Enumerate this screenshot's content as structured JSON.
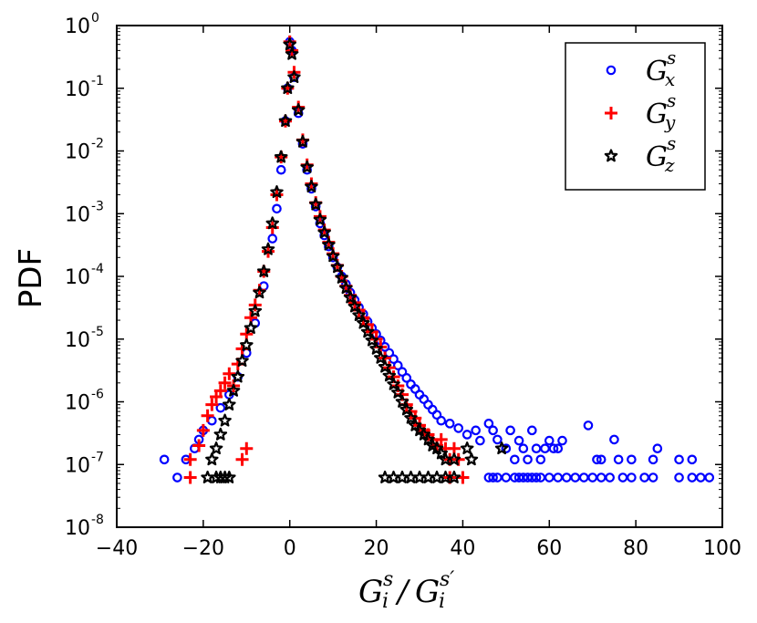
{
  "chart_data": {
    "type": "scatter",
    "title": "",
    "xlabel": {
      "base": "G",
      "sup": "s",
      "sub": "i",
      "slash": "/",
      "base2": "G",
      "sup2": "s′",
      "sub2": "i"
    },
    "ylabel": "PDF",
    "xscale": "linear",
    "yscale": "log",
    "xlim": [
      -40,
      100
    ],
    "ylim": [
      1e-08,
      1
    ],
    "x_ticks": [
      {
        "value": -40,
        "label": "−40"
      },
      {
        "value": -20,
        "label": "−20"
      },
      {
        "value": 0,
        "label": "0"
      },
      {
        "value": 20,
        "label": "20"
      },
      {
        "value": 40,
        "label": "40"
      },
      {
        "value": 60,
        "label": "60"
      },
      {
        "value": 80,
        "label": "80"
      },
      {
        "value": 100,
        "label": "100"
      }
    ],
    "y_ticks": [
      {
        "value": 1,
        "base": "10",
        "exp": "0"
      },
      {
        "value": 0.1,
        "base": "10",
        "exp": "-1"
      },
      {
        "value": 0.01,
        "base": "10",
        "exp": "-2"
      },
      {
        "value": 0.001,
        "base": "10",
        "exp": "-3"
      },
      {
        "value": 0.0001,
        "base": "10",
        "exp": "-4"
      },
      {
        "value": 1e-05,
        "base": "10",
        "exp": "-5"
      },
      {
        "value": 1e-06,
        "base": "10",
        "exp": "-6"
      },
      {
        "value": 1e-07,
        "base": "10",
        "exp": "-7"
      },
      {
        "value": 1e-08,
        "base": "10",
        "exp": "-8"
      }
    ],
    "grid": false,
    "legend_position": "top-right",
    "series": [
      {
        "name": "G_x^s",
        "legend": {
          "base": "G",
          "sup": "s",
          "sub": "x"
        },
        "marker": "circle",
        "color": "#0000ff",
        "points": [
          [
            -29,
            1.2e-07
          ],
          [
            -26,
            6.2e-08
          ],
          [
            -24,
            1.2e-07
          ],
          [
            -22,
            1.8e-07
          ],
          [
            -21,
            2.5e-07
          ],
          [
            -20,
            3.5e-07
          ],
          [
            -18,
            5e-07
          ],
          [
            -16,
            8e-07
          ],
          [
            -14,
            1.3e-06
          ],
          [
            -12,
            2.5e-06
          ],
          [
            -10,
            6e-06
          ],
          [
            -8,
            1.8e-05
          ],
          [
            -6,
            7e-05
          ],
          [
            -4,
            0.0004
          ],
          [
            -3,
            0.0012
          ],
          [
            -2,
            0.005
          ],
          [
            -1,
            0.03
          ],
          [
            -0.5,
            0.1
          ],
          [
            0,
            0.55
          ],
          [
            0.5,
            0.4
          ],
          [
            1,
            0.15
          ],
          [
            2,
            0.04
          ],
          [
            3,
            0.013
          ],
          [
            4,
            0.005
          ],
          [
            5,
            0.0025
          ],
          [
            6,
            0.0013
          ],
          [
            7,
            0.0007
          ],
          [
            8,
            0.00045
          ],
          [
            9,
            0.0003
          ],
          [
            10,
            0.0002
          ],
          [
            11,
            0.00014
          ],
          [
            12,
            0.0001
          ],
          [
            13,
            7.5e-05
          ],
          [
            14,
            5.5e-05
          ],
          [
            15,
            4.2e-05
          ],
          [
            16,
            3.2e-05
          ],
          [
            17,
            2.5e-05
          ],
          [
            18,
            1.9e-05
          ],
          [
            19,
            1.5e-05
          ],
          [
            20,
            1.2e-05
          ],
          [
            21,
            9.5e-06
          ],
          [
            22,
            7.5e-06
          ],
          [
            23,
            6e-06
          ],
          [
            24,
            4.8e-06
          ],
          [
            25,
            3.8e-06
          ],
          [
            26,
            3e-06
          ],
          [
            27,
            2.4e-06
          ],
          [
            28,
            1.9e-06
          ],
          [
            29,
            1.6e-06
          ],
          [
            30,
            1.3e-06
          ],
          [
            31,
            1.1e-06
          ],
          [
            32,
            9e-07
          ],
          [
            33,
            7.5e-07
          ],
          [
            34,
            6.2e-07
          ],
          [
            35,
            5e-07
          ],
          [
            37,
            4.5e-07
          ],
          [
            39,
            3.8e-07
          ],
          [
            41,
            3e-07
          ],
          [
            43,
            3.5e-07
          ],
          [
            44,
            2.4e-07
          ],
          [
            46,
            4.5e-07
          ],
          [
            47,
            3.5e-07
          ],
          [
            48,
            2.5e-07
          ],
          [
            50,
            1.8e-07
          ],
          [
            51,
            3.5e-07
          ],
          [
            52,
            1.2e-07
          ],
          [
            53,
            2.4e-07
          ],
          [
            54,
            1.8e-07
          ],
          [
            55,
            1.2e-07
          ],
          [
            56,
            3.5e-07
          ],
          [
            57,
            1.8e-07
          ],
          [
            58,
            1.2e-07
          ],
          [
            59,
            1.8e-07
          ],
          [
            60,
            2.4e-07
          ],
          [
            61,
            1.8e-07
          ],
          [
            62,
            1.8e-07
          ],
          [
            63,
            2.4e-07
          ],
          [
            69,
            4.2e-07
          ],
          [
            71,
            1.2e-07
          ],
          [
            72,
            1.2e-07
          ],
          [
            75,
            2.5e-07
          ],
          [
            76,
            1.2e-07
          ],
          [
            79,
            1.2e-07
          ],
          [
            85,
            1.8e-07
          ],
          [
            84,
            1.2e-07
          ],
          [
            90,
            1.2e-07
          ],
          [
            93,
            1.2e-07
          ],
          [
            46,
            6.2e-08
          ],
          [
            47,
            6.2e-08
          ],
          [
            48,
            6.2e-08
          ],
          [
            50,
            6.2e-08
          ],
          [
            52,
            6.2e-08
          ],
          [
            53,
            6.2e-08
          ],
          [
            54,
            6.2e-08
          ],
          [
            55,
            6.2e-08
          ],
          [
            56,
            6.2e-08
          ],
          [
            57,
            6.2e-08
          ],
          [
            58,
            6.2e-08
          ],
          [
            60,
            6.2e-08
          ],
          [
            62,
            6.2e-08
          ],
          [
            64,
            6.2e-08
          ],
          [
            66,
            6.2e-08
          ],
          [
            68,
            6.2e-08
          ],
          [
            70,
            6.2e-08
          ],
          [
            72,
            6.2e-08
          ],
          [
            74,
            6.2e-08
          ],
          [
            77,
            6.2e-08
          ],
          [
            79,
            6.2e-08
          ],
          [
            82,
            6.2e-08
          ],
          [
            84,
            6.2e-08
          ],
          [
            90,
            6.2e-08
          ],
          [
            93,
            6.2e-08
          ],
          [
            95,
            6.2e-08
          ],
          [
            97,
            6.2e-08
          ]
        ]
      },
      {
        "name": "G_y^s",
        "legend": {
          "base": "G",
          "sup": "s",
          "sub": "y"
        },
        "marker": "plus",
        "color": "#ff0000",
        "points": [
          [
            -23,
            6.2e-08
          ],
          [
            -23,
            1.2e-07
          ],
          [
            -21,
            2e-07
          ],
          [
            -20,
            3.5e-07
          ],
          [
            -19,
            6e-07
          ],
          [
            -18,
            9e-07
          ],
          [
            -17,
            1.2e-06
          ],
          [
            -16,
            1.5e-06
          ],
          [
            -15,
            2e-06
          ],
          [
            -14,
            2.8e-06
          ],
          [
            -13,
            1.8e-06
          ],
          [
            -12,
            4e-06
          ],
          [
            -11,
            7e-06
          ],
          [
            -10,
            1.2e-05
          ],
          [
            -9,
            2.2e-05
          ],
          [
            -8,
            3.5e-05
          ],
          [
            -7,
            6e-05
          ],
          [
            -6,
            0.00012
          ],
          [
            -5,
            0.00025
          ],
          [
            -4,
            0.0006
          ],
          [
            -3,
            0.002
          ],
          [
            -2,
            0.008
          ],
          [
            -1,
            0.03
          ],
          [
            -0.5,
            0.1
          ],
          [
            0,
            0.55
          ],
          [
            0.5,
            0.4
          ],
          [
            1,
            0.18
          ],
          [
            2,
            0.05
          ],
          [
            3,
            0.015
          ],
          [
            4,
            0.006
          ],
          [
            5,
            0.003
          ],
          [
            6,
            0.0015
          ],
          [
            7,
            0.0009
          ],
          [
            8,
            0.00055
          ],
          [
            9,
            0.00035
          ],
          [
            10,
            0.00023
          ],
          [
            11,
            0.00015
          ],
          [
            12,
            0.0001
          ],
          [
            13,
            7e-05
          ],
          [
            14,
            5e-05
          ],
          [
            15,
            3.8e-05
          ],
          [
            16,
            2.9e-05
          ],
          [
            17,
            2.2e-05
          ],
          [
            18,
            1.7e-05
          ],
          [
            19,
            1.3e-05
          ],
          [
            20,
            1e-05
          ],
          [
            21,
            7.5e-06
          ],
          [
            22,
            5e-06
          ],
          [
            23,
            3.5e-06
          ],
          [
            24,
            2.5e-06
          ],
          [
            25,
            1.8e-06
          ],
          [
            26,
            1.3e-06
          ],
          [
            27,
            9e-07
          ],
          [
            28,
            7e-07
          ],
          [
            29,
            5.5e-07
          ],
          [
            30,
            4.2e-07
          ],
          [
            31,
            3.5e-07
          ],
          [
            32,
            3e-07
          ],
          [
            33,
            2.5e-07
          ],
          [
            34,
            2e-07
          ],
          [
            35,
            2.5e-07
          ],
          [
            36,
            1.8e-07
          ],
          [
            37,
            1.2e-07
          ],
          [
            38,
            1.8e-07
          ],
          [
            39,
            1.2e-07
          ],
          [
            40,
            6.2e-08
          ],
          [
            37,
            6.2e-08
          ],
          [
            -10,
            1.8e-07
          ],
          [
            -11,
            1.2e-07
          ]
        ]
      },
      {
        "name": "G_z^s",
        "legend": {
          "base": "G",
          "sup": "s",
          "sub": "z"
        },
        "marker": "star",
        "color": "#000000",
        "points": [
          [
            -19,
            6.2e-08
          ],
          [
            -18,
            1.2e-07
          ],
          [
            -17,
            1.8e-07
          ],
          [
            -16,
            3e-07
          ],
          [
            -15,
            5e-07
          ],
          [
            -14,
            9e-07
          ],
          [
            -13,
            1.5e-06
          ],
          [
            -12,
            2.5e-06
          ],
          [
            -11,
            4.5e-06
          ],
          [
            -10,
            8e-06
          ],
          [
            -9,
            1.5e-05
          ],
          [
            -8,
            2.8e-05
          ],
          [
            -7,
            5.5e-05
          ],
          [
            -6,
            0.00012
          ],
          [
            -5,
            0.00027
          ],
          [
            -4,
            0.0007
          ],
          [
            -3,
            0.0022
          ],
          [
            -2,
            0.008
          ],
          [
            -1,
            0.03
          ],
          [
            -0.5,
            0.1
          ],
          [
            0,
            0.5
          ],
          [
            0.5,
            0.35
          ],
          [
            1,
            0.15
          ],
          [
            2,
            0.045
          ],
          [
            3,
            0.014
          ],
          [
            4,
            0.0055
          ],
          [
            5,
            0.0027
          ],
          [
            6,
            0.0014
          ],
          [
            7,
            0.0008
          ],
          [
            8,
            0.0005
          ],
          [
            9,
            0.00032
          ],
          [
            10,
            0.00021
          ],
          [
            11,
            0.00014
          ],
          [
            12,
            9.5e-05
          ],
          [
            13,
            6.5e-05
          ],
          [
            14,
            4.6e-05
          ],
          [
            15,
            3.3e-05
          ],
          [
            16,
            2.4e-05
          ],
          [
            17,
            1.8e-05
          ],
          [
            18,
            1.3e-05
          ],
          [
            19,
            9.5e-06
          ],
          [
            20,
            7e-06
          ],
          [
            21,
            5e-06
          ],
          [
            22,
            3.6e-06
          ],
          [
            23,
            2.6e-06
          ],
          [
            24,
            1.9e-06
          ],
          [
            25,
            1.4e-06
          ],
          [
            26,
            1e-06
          ],
          [
            27,
            7.5e-07
          ],
          [
            28,
            5.5e-07
          ],
          [
            29,
            4.2e-07
          ],
          [
            30,
            3.5e-07
          ],
          [
            31,
            3e-07
          ],
          [
            32,
            2.5e-07
          ],
          [
            33,
            2e-07
          ],
          [
            34,
            1.8e-07
          ],
          [
            35,
            1.5e-07
          ],
          [
            36,
            1.2e-07
          ],
          [
            38,
            1.2e-07
          ],
          [
            41,
            1.8e-07
          ],
          [
            42,
            1.2e-07
          ],
          [
            49,
            1.8e-07
          ],
          [
            22,
            6.2e-08
          ],
          [
            24,
            6.2e-08
          ],
          [
            26,
            6.2e-08
          ],
          [
            28,
            6.2e-08
          ],
          [
            30,
            6.2e-08
          ],
          [
            32,
            6.2e-08
          ],
          [
            34,
            6.2e-08
          ],
          [
            36,
            6.2e-08
          ],
          [
            38,
            6.2e-08
          ],
          [
            -14,
            6.2e-08
          ],
          [
            -15,
            6.2e-08
          ],
          [
            -16,
            6.2e-08
          ],
          [
            -17,
            6.2e-08
          ]
        ]
      }
    ]
  }
}
